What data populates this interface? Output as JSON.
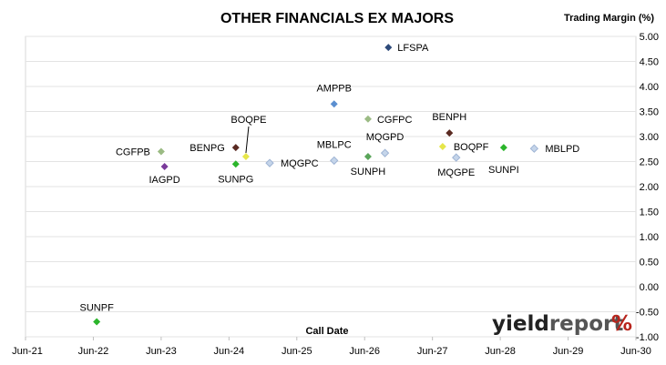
{
  "chart_data": {
    "type": "scatter",
    "title": "OTHER FINANCIALS EX MAJORS",
    "ylabel": "Trading Margin (%)",
    "xlabel": "Call Date",
    "ylim": [
      -1.0,
      5.0
    ],
    "y_ticks": [
      "5.00",
      "4.50",
      "4.00",
      "3.50",
      "3.00",
      "2.50",
      "2.00",
      "1.50",
      "1.00",
      "0.50",
      "0.00",
      "-0.50",
      "-1.00"
    ],
    "x_ticks": [
      "Jun-21",
      "Jun-22",
      "Jun-23",
      "Jun-24",
      "Jun-25",
      "Jun-26",
      "Jun-27",
      "Jun-28",
      "Jun-29",
      "Jun-30"
    ],
    "xlim": [
      "Jun-21",
      "Jun-30"
    ],
    "grid": "horizontal",
    "points": [
      {
        "name": "LFSPA",
        "x": "Jun-26",
        "x_frac": 0.35,
        "y": 4.78,
        "color": "#2e4a7a"
      },
      {
        "name": "AMPPB",
        "x": "Jun-25",
        "x_frac": 0.55,
        "y": 3.65,
        "color": "#5b8fd0"
      },
      {
        "name": "CGFPC",
        "x": "Jun-26",
        "x_frac": 0.05,
        "y": 3.35,
        "color": "#9bbb84"
      },
      {
        "name": "BENPH",
        "x": "Jun-27",
        "x_frac": 0.25,
        "y": 3.07,
        "color": "#5a2a22"
      },
      {
        "name": "MQGPD",
        "x": "Jun-26",
        "x_frac": 0.3,
        "y": 2.67,
        "color": "#c5d5ea"
      },
      {
        "name": "BOQPF",
        "x": "Jun-27",
        "x_frac": 0.15,
        "y": 2.8,
        "color": "#e6e64a"
      },
      {
        "name": "SUNPI",
        "x": "Jun-28",
        "x_frac": 0.05,
        "y": 2.78,
        "color": "#2bb52b"
      },
      {
        "name": "MBLPD",
        "x": "Jun-28",
        "x_frac": 0.5,
        "y": 2.76,
        "color": "#c5d5ea"
      },
      {
        "name": "MQGPE",
        "x": "Jun-27",
        "x_frac": 0.35,
        "y": 2.58,
        "color": "#c5d5ea"
      },
      {
        "name": "SUNPH",
        "x": "Jun-26",
        "x_frac": 0.05,
        "y": 2.6,
        "color": "#5aa55a"
      },
      {
        "name": "MBLPC",
        "x": "Jun-25",
        "x_frac": 0.55,
        "y": 2.52,
        "color": "#c5d5ea"
      },
      {
        "name": "MQGPC",
        "x": "Jun-24",
        "x_frac": 0.6,
        "y": 2.47,
        "color": "#c5d5ea"
      },
      {
        "name": "BOQPE",
        "x": "Jun-24",
        "x_frac": 0.25,
        "y": 2.6,
        "color": "#e6e64a"
      },
      {
        "name": "BENPG",
        "x": "Jun-24",
        "x_frac": 0.1,
        "y": 2.78,
        "color": "#5a2a22"
      },
      {
        "name": "SUNPG",
        "x": "Jun-24",
        "x_frac": 0.1,
        "y": 2.45,
        "color": "#2bb52b"
      },
      {
        "name": "CGFPB",
        "x": "Jun-23",
        "x_frac": 0.0,
        "y": 2.7,
        "color": "#9bbb84"
      },
      {
        "name": "IAGPD",
        "x": "Jun-23",
        "x_frac": 0.05,
        "y": 2.4,
        "color": "#7a3a9a"
      },
      {
        "name": "SUNPF",
        "x": "Jun-22",
        "x_frac": 0.05,
        "y": -0.7,
        "color": "#2bb52b"
      }
    ]
  },
  "logo": {
    "text_a": "yield",
    "text_b": "report",
    "text_c": "%"
  }
}
